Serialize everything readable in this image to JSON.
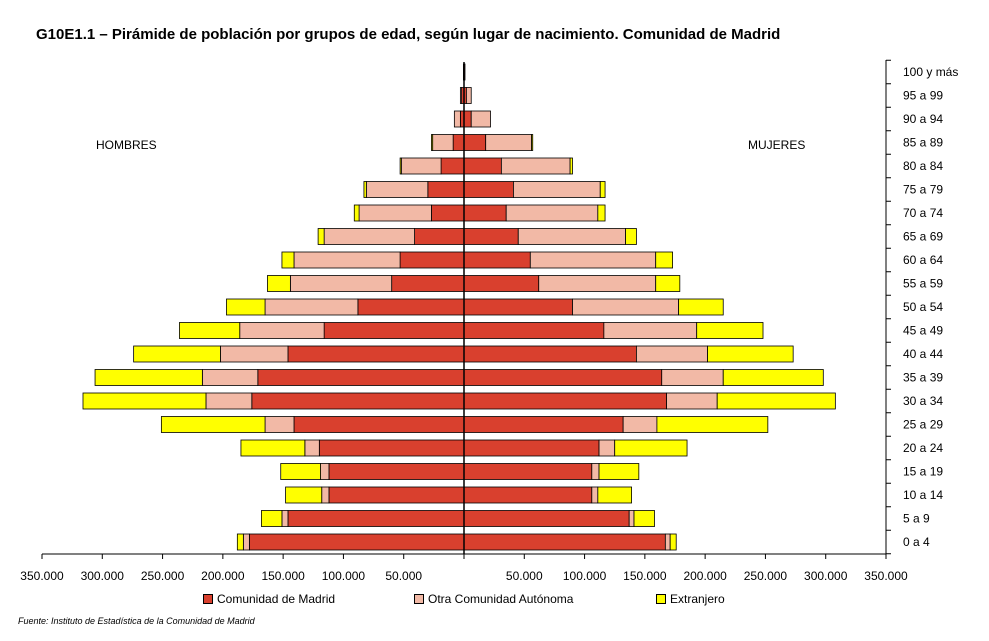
{
  "title": "G10E1.1 – Pirámide de población por grupos de edad, según lugar de nacimiento. Comunidad de Madrid",
  "labels": {
    "men": "HOMBRES",
    "women": "MUJERES"
  },
  "source": "Fuente: Instituto de Estadística de la Comunidad de Madrid",
  "colors": {
    "Comunidad de Madrid": "#d9402e",
    "Otra Comunidad Autónoma": "#f2b9a6",
    "Extranjero": "#ffff00"
  },
  "chart_data": {
    "type": "bar",
    "orientation": "horizontal-pyramid",
    "categories": [
      "0 a 4",
      "5 a 9",
      "10 a 14",
      "15 a 19",
      "20 a 24",
      "25 a 29",
      "30 a 34",
      "35 a 39",
      "40 a 44",
      "45 a 49",
      "50 a 54",
      "55 a 59",
      "60 a 64",
      "65 a 69",
      "70 a 74",
      "75 a 79",
      "80 a 84",
      "85 a 89",
      "90 a 94",
      "95 a 99",
      "100 y más"
    ],
    "x_ticks": [
      "350.000",
      "300.000",
      "250.000",
      "200.000",
      "150.000",
      "100.000",
      "50.000",
      "",
      "50.000",
      "100.000",
      "150.000",
      "200.000",
      "250.000",
      "300.000",
      "350.000"
    ],
    "xlim": [
      -350000,
      350000
    ],
    "series_order": [
      "Comunidad de Madrid",
      "Otra Comunidad Autónoma",
      "Extranjero"
    ],
    "men": [
      {
        "name": "Comunidad de Madrid",
        "values": [
          178000,
          146000,
          112000,
          112000,
          120000,
          141000,
          176000,
          171000,
          146000,
          116000,
          88000,
          60000,
          53000,
          41000,
          27000,
          30000,
          19000,
          9000,
          3000,
          2000,
          500
        ]
      },
      {
        "name": "Otra Comunidad Autónoma",
        "values": [
          5000,
          5000,
          6000,
          7000,
          12000,
          24000,
          38000,
          46000,
          56000,
          70000,
          77000,
          84000,
          88000,
          75000,
          60000,
          51000,
          33000,
          17000,
          5000,
          1000,
          0
        ]
      },
      {
        "name": "Extranjero",
        "values": [
          5000,
          17000,
          30000,
          33000,
          53000,
          86000,
          102000,
          89000,
          72000,
          50000,
          32000,
          19000,
          10000,
          5000,
          4000,
          2000,
          1000,
          1000,
          0,
          0,
          0
        ]
      }
    ],
    "women": [
      {
        "name": "Comunidad de Madrid",
        "values": [
          167000,
          137000,
          106000,
          106000,
          112000,
          132000,
          168000,
          164000,
          143000,
          116000,
          90000,
          62000,
          55000,
          45000,
          35000,
          41000,
          31000,
          18000,
          6000,
          2000,
          500
        ]
      },
      {
        "name": "Otra Comunidad Autónoma",
        "values": [
          4000,
          4000,
          5000,
          6000,
          13000,
          28000,
          42000,
          51000,
          59000,
          77000,
          88000,
          97000,
          104000,
          89000,
          76000,
          72000,
          57000,
          38000,
          16000,
          4000,
          0
        ]
      },
      {
        "name": "Extranjero",
        "values": [
          5000,
          17000,
          28000,
          33000,
          60000,
          92000,
          98000,
          83000,
          71000,
          55000,
          37000,
          20000,
          14000,
          9000,
          6000,
          4000,
          2000,
          1000,
          0,
          0,
          0
        ]
      }
    ]
  }
}
